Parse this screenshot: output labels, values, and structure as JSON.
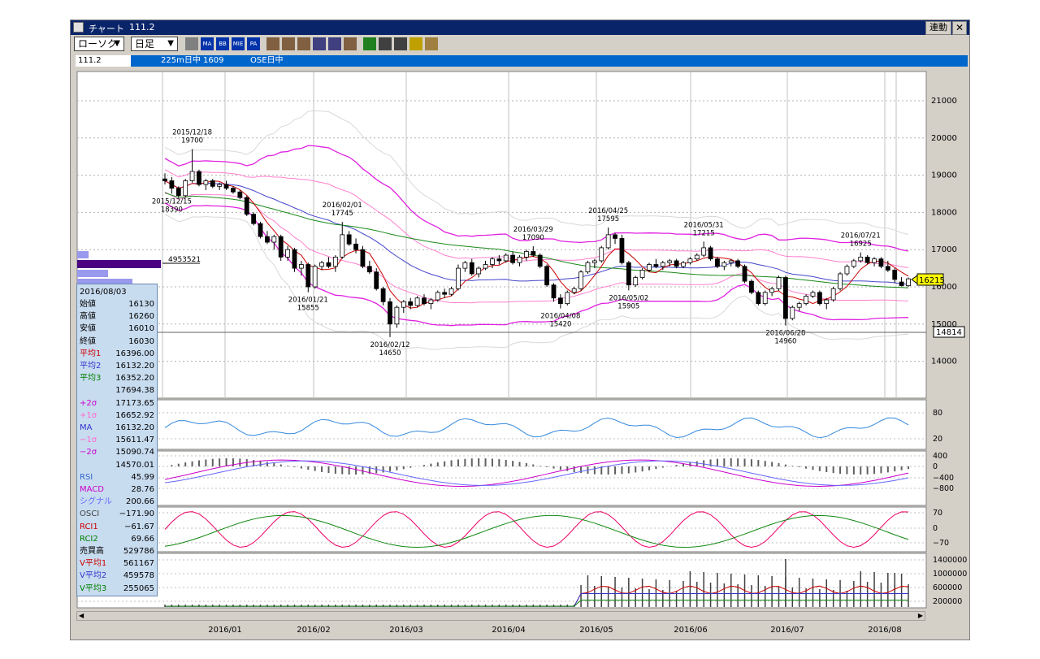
{
  "window": {
    "icon": "chart-icon",
    "title": "チャート",
    "code": "111.2",
    "link_label": "連動",
    "close_label": "✕"
  },
  "toolbar": {
    "dropdown1": "ローソク",
    "dropdown2": "日足",
    "buttons": [
      "bar-chart-icon",
      "MA",
      "BB",
      "MIE",
      "PA",
      "cross-icon",
      "candle-icon",
      "grid-icon",
      "zoom-icon",
      "fit-icon",
      "table-icon",
      "pen-icon",
      "cursor-icon",
      "eraser-icon",
      "highlight-icon",
      "cancel-icon"
    ]
  },
  "infobar": {
    "symbol": "111.2",
    "name": "225m日中 1609",
    "exchange": "OSE日中"
  },
  "price_axis": {
    "ticks": [
      "21000",
      "20000",
      "19000",
      "18000",
      "17000",
      "16000",
      "15000",
      "14000"
    ]
  },
  "price_tags": {
    "current": "16215",
    "cursor": "14814"
  },
  "volume_profile_label": "4953521",
  "annotations": [
    {
      "date": "2015/12/18",
      "value": "19700"
    },
    {
      "date": "2015/12/15",
      "value": "18390"
    },
    {
      "date": "2016/02/01",
      "value": "17745"
    },
    {
      "date": "2016/01/21",
      "value": "15855"
    },
    {
      "date": "2016/02/12",
      "value": "14650"
    },
    {
      "date": "2016/03/29",
      "value": "17090"
    },
    {
      "date": "2016/04/08",
      "value": "15420"
    },
    {
      "date": "2016/04/25",
      "value": "17595"
    },
    {
      "date": "2016/05/02",
      "value": "15905"
    },
    {
      "date": "2016/05/31",
      "value": "17215"
    },
    {
      "date": "2016/06/28",
      "value": "14960"
    },
    {
      "date": "2016/07/21",
      "value": "16925"
    }
  ],
  "sub_panels": {
    "rsi": {
      "label": "RSI",
      "ticks": [
        "80",
        "20"
      ]
    },
    "macd": {
      "label": "MACD",
      "ticks": [
        "400",
        "0",
        "−400",
        "−800"
      ]
    },
    "rci": {
      "label": "RCI",
      "ticks": [
        "70",
        "0",
        "−70"
      ]
    },
    "volume": {
      "label": "売買高",
      "ticks": [
        "1400000",
        "1000000",
        "600000",
        "200000"
      ]
    }
  },
  "x_axis": {
    "labels": [
      "2016/01",
      "2016/02",
      "2016/03",
      "2016/04",
      "2016/05",
      "2016/06",
      "2016/07",
      "2016/08"
    ]
  },
  "data_panel": {
    "date": "2016/08/03",
    "rows": [
      {
        "k": "始値",
        "v": "16130",
        "color": "#000000"
      },
      {
        "k": "高値",
        "v": "16260",
        "color": "#000000"
      },
      {
        "k": "安値",
        "v": "16010",
        "color": "#000000"
      },
      {
        "k": "終値",
        "v": "16030",
        "color": "#000000"
      },
      {
        "k": "平均1",
        "v": "16396.00",
        "color": "#cc0000"
      },
      {
        "k": "平均2",
        "v": "16132.20",
        "color": "#3333cc"
      },
      {
        "k": "平均3",
        "v": "16352.20",
        "color": "#008000"
      },
      {
        "k": "",
        "v": "17694.38",
        "color": "#000000"
      },
      {
        "k": "+2σ",
        "v": "17173.65",
        "color": "#cc00cc"
      },
      {
        "k": "+1σ",
        "v": "16652.92",
        "color": "#ff66cc"
      },
      {
        "k": "MA",
        "v": "16132.20",
        "color": "#3333cc"
      },
      {
        "k": "−1σ",
        "v": "15611.47",
        "color": "#ff66cc"
      },
      {
        "k": "−2σ",
        "v": "15090.74",
        "color": "#cc00cc"
      },
      {
        "k": "",
        "v": "14570.01",
        "color": "#000000"
      },
      {
        "k": "RSI",
        "v": "45.99",
        "color": "#3366cc"
      },
      {
        "k": "MACD",
        "v": "28.76",
        "color": "#cc00cc"
      },
      {
        "k": "シグナル",
        "v": "200.66",
        "color": "#6666ff"
      },
      {
        "k": "OSCI",
        "v": "−171.90",
        "color": "#404040"
      },
      {
        "k": "RCI1",
        "v": "−61.67",
        "color": "#cc0000"
      },
      {
        "k": "RCI2",
        "v": "69.66",
        "color": "#008000"
      },
      {
        "k": "売買高",
        "v": "529786",
        "color": "#000000"
      },
      {
        "k": "V平均1",
        "v": "561167",
        "color": "#cc0000"
      },
      {
        "k": "V平均2",
        "v": "459578",
        "color": "#3333cc"
      },
      {
        "k": "V平均3",
        "v": "255065",
        "color": "#008000"
      }
    ]
  },
  "candles": [
    [
      18900,
      19050,
      18750,
      18850
    ],
    [
      18850,
      18950,
      18500,
      18650
    ],
    [
      18650,
      18700,
      18390,
      18450
    ],
    [
      18450,
      18900,
      18400,
      18850
    ],
    [
      18850,
      19700,
      18800,
      19100
    ],
    [
      19100,
      19150,
      18700,
      18750
    ],
    [
      18750,
      18900,
      18600,
      18850
    ],
    [
      18850,
      18900,
      18650,
      18700
    ],
    [
      18700,
      18800,
      18600,
      18750
    ],
    [
      18750,
      18850,
      18600,
      18650
    ],
    [
      18650,
      18700,
      18500,
      18550
    ],
    [
      18550,
      18600,
      18350,
      18400
    ],
    [
      18400,
      18450,
      17900,
      17950
    ],
    [
      17950,
      18000,
      17650,
      17700
    ],
    [
      17700,
      17750,
      17300,
      17350
    ],
    [
      17350,
      17500,
      17150,
      17200
    ],
    [
      17200,
      17400,
      17000,
      17350
    ],
    [
      17350,
      17400,
      16700,
      16800
    ],
    [
      16800,
      17100,
      16700,
      17000
    ],
    [
      17000,
      17050,
      16400,
      16500
    ],
    [
      16500,
      16700,
      16300,
      16600
    ],
    [
      16600,
      16650,
      15855,
      16000
    ],
    [
      16000,
      16600,
      15950,
      16550
    ],
    [
      16550,
      16700,
      16450,
      16650
    ],
    [
      16650,
      16800,
      16500,
      16550
    ],
    [
      16550,
      16850,
      16400,
      16800
    ],
    [
      16800,
      17745,
      16750,
      17400
    ],
    [
      17400,
      17500,
      17100,
      17150
    ],
    [
      17150,
      17300,
      16900,
      17000
    ],
    [
      17000,
      17100,
      16500,
      16550
    ],
    [
      16550,
      16700,
      16350,
      16400
    ],
    [
      16400,
      16500,
      15900,
      15950
    ],
    [
      15950,
      16000,
      15500,
      15600
    ],
    [
      15600,
      15700,
      14650,
      15000
    ],
    [
      15000,
      15500,
      14900,
      15450
    ],
    [
      15450,
      15650,
      15300,
      15600
    ],
    [
      15600,
      15700,
      15400,
      15500
    ],
    [
      15500,
      15750,
      15450,
      15700
    ],
    [
      15700,
      15800,
      15500,
      15550
    ],
    [
      15550,
      15700,
      15400,
      15650
    ],
    [
      15650,
      15900,
      15600,
      15850
    ],
    [
      15850,
      15950,
      15700,
      15800
    ],
    [
      15800,
      16000,
      15750,
      15950
    ],
    [
      15950,
      16600,
      15900,
      16500
    ],
    [
      16500,
      16700,
      16400,
      16650
    ],
    [
      16650,
      16750,
      16300,
      16350
    ],
    [
      16350,
      16550,
      16250,
      16500
    ],
    [
      16500,
      16700,
      16450,
      16600
    ],
    [
      16600,
      16800,
      16500,
      16750
    ],
    [
      16750,
      16850,
      16600,
      16700
    ],
    [
      16700,
      16900,
      16650,
      16850
    ],
    [
      16850,
      16950,
      16600,
      16650
    ],
    [
      16650,
      16850,
      16550,
      16800
    ],
    [
      16800,
      17000,
      16700,
      16950
    ],
    [
      16950,
      17090,
      16800,
      16850
    ],
    [
      16850,
      16900,
      16500,
      16550
    ],
    [
      16550,
      16600,
      16000,
      16050
    ],
    [
      16050,
      16100,
      15600,
      15700
    ],
    [
      15700,
      15800,
      15420,
      15550
    ],
    [
      15550,
      15900,
      15500,
      15850
    ],
    [
      15850,
      16000,
      15800,
      15950
    ],
    [
      15950,
      16450,
      15900,
      16400
    ],
    [
      16400,
      16700,
      16350,
      16650
    ],
    [
      16650,
      16750,
      16500,
      16700
    ],
    [
      16700,
      17100,
      16650,
      17050
    ],
    [
      17050,
      17595,
      17000,
      17400
    ],
    [
      17400,
      17450,
      17150,
      17300
    ],
    [
      17300,
      17400,
      16600,
      16650
    ],
    [
      16650,
      16700,
      15905,
      16050
    ],
    [
      16050,
      16300,
      16000,
      16250
    ],
    [
      16250,
      16500,
      16200,
      16450
    ],
    [
      16450,
      16650,
      16400,
      16600
    ],
    [
      16600,
      16750,
      16500,
      16550
    ],
    [
      16550,
      16700,
      16450,
      16650
    ],
    [
      16650,
      16750,
      16550,
      16700
    ],
    [
      16700,
      16750,
      16500,
      16550
    ],
    [
      16550,
      16700,
      16500,
      16650
    ],
    [
      16650,
      16800,
      16600,
      16750
    ],
    [
      16750,
      16900,
      16700,
      16850
    ],
    [
      16850,
      17215,
      16800,
      17050
    ],
    [
      17050,
      17100,
      16700,
      16750
    ],
    [
      16750,
      16800,
      16500,
      16550
    ],
    [
      16550,
      16700,
      16450,
      16650
    ],
    [
      16650,
      16750,
      16550,
      16700
    ],
    [
      16700,
      16750,
      16500,
      16550
    ],
    [
      16550,
      16600,
      16100,
      16150
    ],
    [
      16150,
      16200,
      15800,
      15850
    ],
    [
      15850,
      15900,
      15500,
      15550
    ],
    [
      15550,
      15900,
      15500,
      15850
    ],
    [
      15850,
      16000,
      15750,
      15950
    ],
    [
      15950,
      16300,
      15900,
      16250
    ],
    [
      16250,
      16300,
      14960,
      15150
    ],
    [
      15150,
      15500,
      15100,
      15450
    ],
    [
      15450,
      15600,
      15350,
      15550
    ],
    [
      15550,
      15800,
      15500,
      15750
    ],
    [
      15750,
      15900,
      15700,
      15850
    ],
    [
      15850,
      15900,
      15500,
      15550
    ],
    [
      15550,
      15700,
      15400,
      15650
    ],
    [
      15650,
      16000,
      15600,
      15950
    ],
    [
      15950,
      16400,
      15900,
      16350
    ],
    [
      16350,
      16600,
      16300,
      16550
    ],
    [
      16550,
      16750,
      16500,
      16700
    ],
    [
      16700,
      16925,
      16650,
      16800
    ],
    [
      16800,
      16850,
      16600,
      16650
    ],
    [
      16650,
      16800,
      16550,
      16750
    ],
    [
      16750,
      16800,
      16500,
      16550
    ],
    [
      16550,
      16700,
      16400,
      16450
    ],
    [
      16450,
      16500,
      16100,
      16200
    ],
    [
      16130,
      16260,
      16010,
      16030
    ],
    [
      16030,
      16250,
      16000,
      16215
    ]
  ]
}
